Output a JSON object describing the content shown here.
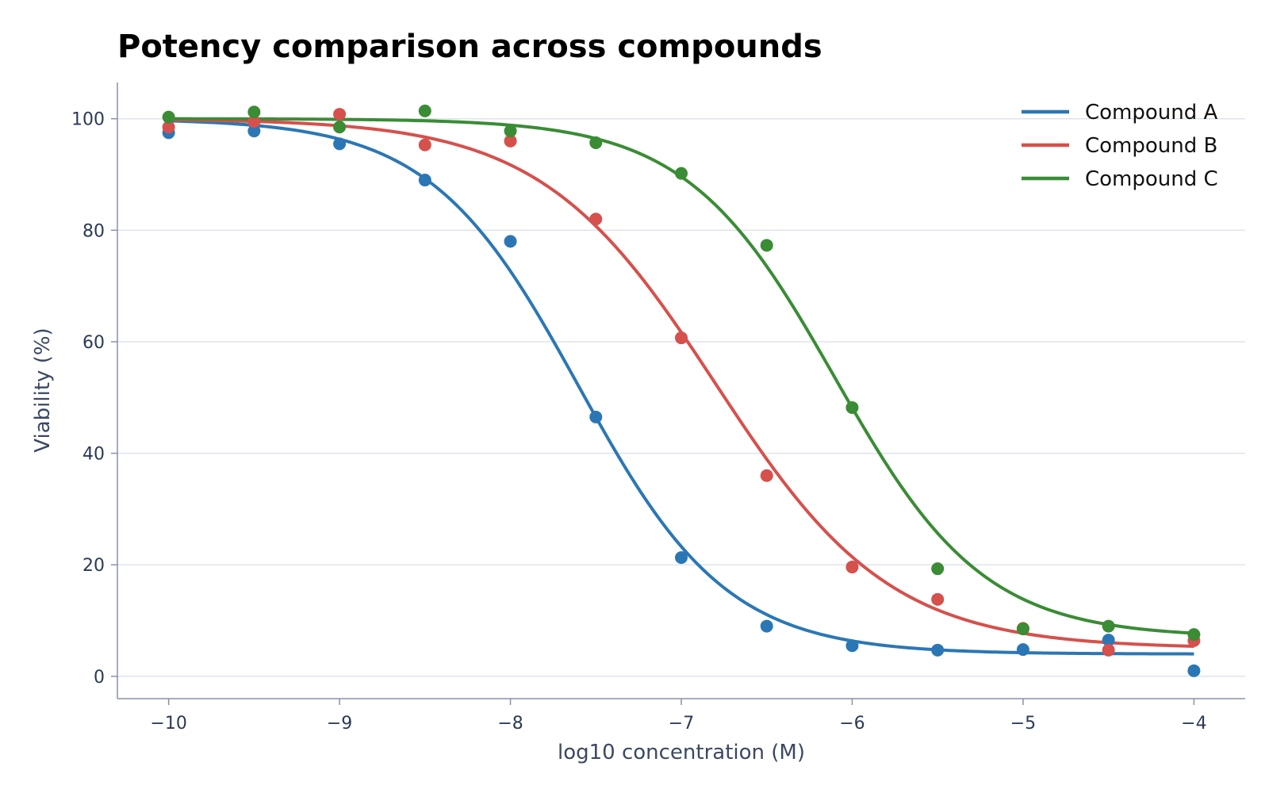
{
  "chart_data": {
    "type": "scatter",
    "title": "Potency comparison across compounds",
    "xlabel": "log10 concentration (M)",
    "ylabel": "Viability (%)",
    "xlim": [
      -10.3,
      -3.7
    ],
    "ylim": [
      -4,
      106.5
    ],
    "x_ticks": [
      -10,
      -9,
      -8,
      -7,
      -6,
      -5,
      -4
    ],
    "x_tick_labels": [
      "−10",
      "−9",
      "−8",
      "−7",
      "−6",
      "−5",
      "−4"
    ],
    "y_ticks": [
      0,
      20,
      40,
      60,
      80,
      100
    ],
    "y_tick_labels": [
      "0",
      "20",
      "40",
      "60",
      "80",
      "100"
    ],
    "grid": "horizontal",
    "legend_position": "top-right",
    "x": [
      -10,
      -9.5,
      -9,
      -8.5,
      -8,
      -7.5,
      -7,
      -6.5,
      -6,
      -5.5,
      -5,
      -4.5,
      -4
    ],
    "series": [
      {
        "name": "Compound A",
        "color": "#2b77b5",
        "points": [
          97.5,
          97.8,
          95.5,
          89.0,
          78.0,
          46.5,
          21.3,
          9.0,
          5.5,
          4.7,
          4.8,
          6.5,
          1.0
        ],
        "fit": {
          "bottom": 4.0,
          "top": 100,
          "log_ic50": -7.6,
          "hill": 1.0
        }
      },
      {
        "name": "Compound B",
        "color": "#d6504c",
        "points": [
          98.5,
          99.5,
          100.8,
          95.3,
          96.0,
          82.0,
          60.7,
          36.0,
          19.6,
          13.8,
          8.6,
          4.7,
          6.4
        ],
        "fit": {
          "bottom": 5.0,
          "top": 100,
          "log_ic50": -6.8,
          "hill": 0.85
        }
      },
      {
        "name": "Compound C",
        "color": "#3a8c35",
        "points": [
          100.3,
          101.2,
          98.5,
          101.4,
          97.8,
          95.7,
          90.2,
          77.3,
          48.2,
          19.3,
          8.5,
          9.0,
          7.5
        ],
        "fit": {
          "bottom": 7.0,
          "top": 100,
          "log_ic50": -6.1,
          "hill": 1.0
        }
      }
    ]
  }
}
